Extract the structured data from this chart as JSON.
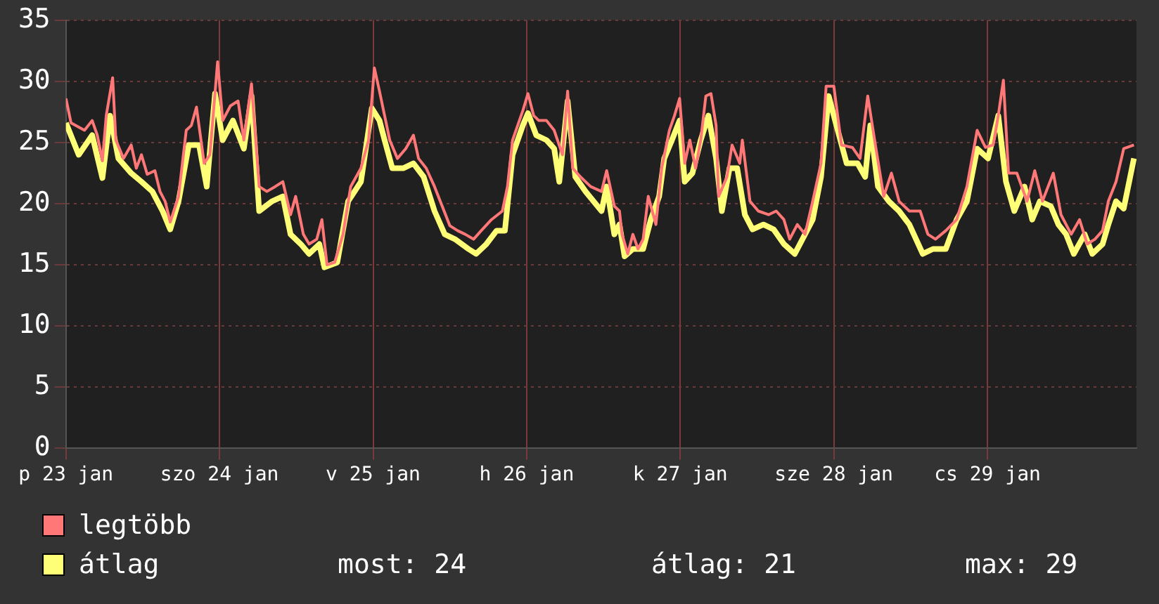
{
  "chart_data": {
    "type": "line",
    "xlim": [
      "--01-23T00:00",
      "--01-29T23:18"
    ],
    "xticks": [
      {
        "value": "--01-23",
        "label": "p 23 jan"
      },
      {
        "value": "--01-24",
        "label": "szo 24 jan"
      },
      {
        "value": "--01-25",
        "label": "v 25 jan"
      },
      {
        "value": "--01-26",
        "label": "h 26 jan"
      },
      {
        "value": "--01-27",
        "label": "k 27 jan"
      },
      {
        "value": "--01-28",
        "label": "sze 28 jan"
      },
      {
        "value": "--01-29",
        "label": "cs 29 jan"
      }
    ],
    "ylim": [
      0,
      35
    ],
    "yticks": [
      0,
      5,
      10,
      15,
      20,
      25,
      30,
      35
    ],
    "grid": true,
    "legend": "bottom",
    "line_style": "solid",
    "marker": "none",
    "annotations": [
      "most: 24",
      "átlag: 21",
      "max: 29"
    ],
    "series": [
      {
        "name": "legtöbb",
        "color": "#ff7777",
        "x": [
          "--01-23T00:00",
          "--01-23T00:48",
          "--01-23T02:54",
          "--01-23T04:06",
          "--01-23T04:54",
          "--01-23T05:42",
          "--01-23T06:18",
          "--01-23T07:18",
          "--01-23T07:48",
          "--01-23T09:00",
          "--01-23T10:12",
          "--01-23T11:00",
          "--01-23T11:48",
          "--01-23T12:42",
          "--01-23T13:54",
          "--01-23T14:42",
          "--01-23T15:30",
          "--01-23T16:18",
          "--01-23T17:36",
          "--01-23T18:48",
          "--01-23T19:36",
          "--01-23T20:24",
          "--01-23T21:36",
          "--01-23T22:30",
          "--01-23T23:42",
          "--01-24T00:30",
          "--01-24T01:42",
          "--01-24T02:54",
          "--01-24T03:48",
          "--01-24T05:00",
          "--01-24T06:12",
          "--01-24T07:24",
          "--01-24T08:42",
          "--01-24T09:54",
          "--01-24T11:06",
          "--01-24T11:54",
          "--01-24T13:06",
          "--01-24T14:00",
          "--01-24T15:12",
          "--01-24T16:00",
          "--01-24T16:48",
          "--01-24T18:00",
          "--01-24T19:18",
          "--01-24T20:30",
          "--01-24T22:06",
          "--01-24T23:18",
          "--01-25T00:12",
          "--01-25T01:00",
          "--01-25T01:48",
          "--01-25T02:36",
          "--01-25T03:48",
          "--01-25T05:06",
          "--01-25T06:18",
          "--01-25T07:06",
          "--01-25T08:18",
          "--01-25T09:36",
          "--01-25T10:48",
          "--01-25T12:00",
          "--01-25T13:12",
          "--01-25T14:24",
          "--01-25T15:42",
          "--01-25T16:54",
          "--01-25T18:30",
          "--01-25T20:12",
          "--01-25T21:00",
          "--01-25T21:48",
          "--01-25T23:24",
          "--01-26T00:12",
          "--01-26T01:06",
          "--01-26T01:54",
          "--01-26T03:06",
          "--01-26T04:18",
          "--01-26T05:36",
          "--01-26T06:24",
          "--01-26T07:12",
          "--01-26T08:24",
          "--01-26T10:00",
          "--01-26T11:42",
          "--01-26T12:30",
          "--01-26T13:42",
          "--01-26T14:30",
          "--01-26T14:54",
          "--01-26T15:48",
          "--01-26T16:36",
          "--01-26T17:24",
          "--01-26T18:12",
          "--01-26T19:00",
          "--01-26T20:12",
          "--01-26T21:06",
          "--01-26T22:18",
          "--01-26T23:06",
          "--01-26T23:54",
          "--01-27T00:42",
          "--01-27T01:30",
          "--01-27T02:24",
          "--01-27T03:12",
          "--01-27T04:00",
          "--01-27T04:48",
          "--01-27T05:36",
          "--01-27T06:00",
          "--01-27T07:18",
          "--01-27T08:06",
          "--01-27T09:18",
          "--01-27T09:42",
          "--01-27T10:54",
          "--01-27T12:12",
          "--01-27T13:48",
          "--01-27T15:00",
          "--01-27T16:12",
          "--01-27T17:06",
          "--01-27T18:18",
          "--01-27T19:30",
          "--01-27T20:42",
          "--01-27T22:00",
          "--01-27T22:48",
          "--01-28T00:00",
          "--01-28T01:12",
          "--01-28T02:54",
          "--01-28T04:06",
          "--01-28T05:18",
          "--01-28T06:30",
          "--01-28T07:48",
          "--01-28T09:00",
          "--01-28T10:12",
          "--01-28T11:48",
          "--01-28T13:30",
          "--01-28T14:42",
          "--01-28T15:54",
          "--01-28T17:30",
          "--01-28T19:12",
          "--01-28T20:48",
          "--01-28T22:24",
          "--01-28T23:42",
          "--01-29T00:54",
          "--01-29T01:42",
          "--01-29T02:30",
          "--01-29T03:18",
          "--01-29T04:36",
          "--01-29T06:12",
          "--01-29T07:24",
          "--01-29T08:36",
          "--01-29T10:18",
          "--01-29T11:30",
          "--01-29T13:06",
          "--01-29T14:24",
          "--01-29T15:36",
          "--01-29T16:48",
          "--01-29T18:00",
          "--01-29T18:54",
          "--01-29T20:06",
          "--01-29T21:18",
          "--01-29T22:54"
        ],
        "values": [
          28.6,
          26.6,
          26,
          26.8,
          25.6,
          23.5,
          27.2,
          30.3,
          25.2,
          23.7,
          24.8,
          22.9,
          24,
          22.4,
          22.7,
          21,
          20.2,
          18.5,
          20.6,
          26,
          26.4,
          27.9,
          23.3,
          24,
          31.6,
          26.8,
          28,
          28.4,
          25.2,
          29.8,
          21.4,
          21,
          21.4,
          21.8,
          19.1,
          20.6,
          17.5,
          16.7,
          17.1,
          18.7,
          15,
          15.2,
          17.5,
          21.4,
          22.9,
          25.2,
          31.1,
          29.2,
          27.2,
          25.2,
          23.7,
          24.5,
          25.6,
          23.7,
          22.9,
          21.4,
          19.8,
          18.2,
          17.8,
          17.5,
          17.1,
          17.8,
          18.7,
          19.4,
          21.4,
          25.2,
          27.6,
          29,
          27.2,
          26.8,
          26.8,
          26,
          24,
          29.2,
          22.9,
          22.2,
          21.4,
          21,
          22.7,
          19.8,
          19.4,
          17.5,
          15.9,
          17.5,
          16.3,
          17.1,
          20.6,
          18.3,
          22.9,
          26,
          27.2,
          28.6,
          23.3,
          25.2,
          22.9,
          25.2,
          28.8,
          29,
          26.4,
          20.6,
          22.2,
          24.8,
          23.3,
          25.2,
          20.2,
          19.4,
          19.1,
          19.4,
          18.7,
          17.1,
          18.3,
          17.5,
          20.2,
          23.3,
          29.6,
          29.6,
          24.8,
          24.6,
          23.7,
          28.8,
          24.8,
          20.6,
          22.5,
          20.2,
          19.4,
          19.4,
          17.5,
          17.1,
          17.8,
          18.7,
          21.4,
          26,
          24.6,
          24.8,
          27.2,
          30.1,
          22.5,
          22.5,
          20.2,
          22.7,
          20.2,
          22.5,
          19.1,
          17.5,
          18.7,
          16.7,
          17.1,
          17.8,
          20.2,
          21.8,
          24.5,
          24.8
        ]
      },
      {
        "name": "átlag",
        "color": "#ffff77",
        "x": [
          "--01-23T00:00",
          "--01-23T02:00",
          "--01-23T04:06",
          "--01-23T05:42",
          "--01-23T06:54",
          "--01-23T08:12",
          "--01-23T10:12",
          "--01-23T11:48",
          "--01-23T13:30",
          "--01-23T15:06",
          "--01-23T16:18",
          "--01-23T17:36",
          "--01-23T19:12",
          "--01-23T20:48",
          "--01-23T22:00",
          "--01-23T23:18",
          "--01-24T00:30",
          "--01-24T02:06",
          "--01-24T03:48",
          "--01-24T05:00",
          "--01-24T06:12",
          "--01-24T08:12",
          "--01-24T09:54",
          "--01-24T11:06",
          "--01-24T12:42",
          "--01-24T14:00",
          "--01-24T15:36",
          "--01-24T16:24",
          "--01-24T18:24",
          "--01-24T20:06",
          "--01-24T22:06",
          "--01-24T23:48",
          "--01-25T01:00",
          "--01-25T01:48",
          "--01-25T03:00",
          "--01-25T04:42",
          "--01-25T06:18",
          "--01-25T07:54",
          "--01-25T09:36",
          "--01-25T11:12",
          "--01-25T12:48",
          "--01-25T14:54",
          "--01-25T16:06",
          "--01-25T17:42",
          "--01-25T19:18",
          "--01-25T20:36",
          "--01-25T21:48",
          "--01-25T23:24",
          "--01-26T00:12",
          "--01-26T01:30",
          "--01-26T03:06",
          "--01-26T04:18",
          "--01-26T05:06",
          "--01-26T06:24",
          "--01-26T07:36",
          "--01-26T09:12",
          "--01-26T11:42",
          "--01-26T12:30",
          "--01-26T13:42",
          "--01-26T14:30",
          "--01-26T15:18",
          "--01-26T16:36",
          "--01-26T18:12",
          "--01-26T19:24",
          "--01-26T20:42",
          "--01-26T21:30",
          "--01-26T22:42",
          "--01-26T23:54",
          "--01-27T00:42",
          "--01-27T01:54",
          "--01-27T03:12",
          "--01-27T04:24",
          "--01-27T05:36",
          "--01-27T06:30",
          "--01-27T07:42",
          "--01-27T08:54",
          "--01-27T10:06",
          "--01-27T11:18",
          "--01-27T13:00",
          "--01-27T14:36",
          "--01-27T16:12",
          "--01-27T17:54",
          "--01-27T19:06",
          "--01-27T20:42",
          "--01-27T22:00",
          "--01-27T23:12",
          "--01-28T00:24",
          "--01-28T02:00",
          "--01-28T03:42",
          "--01-28T04:54",
          "--01-28T05:42",
          "--01-28T06:54",
          "--01-28T08:36",
          "--01-28T10:12",
          "--01-28T11:48",
          "--01-28T13:54",
          "--01-28T15:30",
          "--01-28T17:30",
          "--01-28T19:12",
          "--01-28T20:48",
          "--01-28T22:24",
          "--01-29T00:06",
          "--01-29T01:42",
          "--01-29T02:54",
          "--01-29T04:12",
          "--01-29T05:48",
          "--01-29T07:00",
          "--01-29T08:12",
          "--01-29T09:54",
          "--01-29T11:06",
          "--01-29T12:18",
          "--01-29T13:30",
          "--01-29T15:12",
          "--01-29T16:24",
          "--01-29T18:00",
          "--01-29T18:54",
          "--01-29T20:06",
          "--01-29T21:18",
          "--01-29T22:54"
        ],
        "values": [
          26.6,
          24,
          25.6,
          22.1,
          27.2,
          23.7,
          22.5,
          21.8,
          21,
          19.4,
          17.9,
          20.2,
          24.8,
          24.8,
          21.4,
          29,
          25.2,
          26.8,
          24.5,
          28.8,
          19.4,
          20.2,
          20.6,
          17.5,
          16.7,
          15.9,
          16.7,
          14.8,
          15.2,
          20.2,
          21.8,
          27.8,
          26.8,
          25.2,
          22.9,
          22.9,
          23.3,
          22.2,
          19.4,
          17.5,
          17.1,
          16.3,
          15.9,
          16.7,
          17.8,
          17.8,
          24,
          26.4,
          27.4,
          25.6,
          25.2,
          24.5,
          21.8,
          28.4,
          22.2,
          21,
          19.4,
          21.4,
          17.5,
          18.3,
          15.7,
          16.3,
          16.3,
          18.7,
          20.6,
          23.7,
          25.2,
          26.8,
          21.8,
          22.5,
          25.2,
          27.2,
          23.7,
          19.4,
          22.9,
          22.9,
          19.1,
          17.9,
          18.3,
          17.9,
          16.7,
          15.9,
          17.1,
          18.7,
          22.2,
          28.8,
          26.4,
          23.3,
          23.3,
          22.2,
          26.4,
          21.4,
          20.2,
          19.4,
          18.3,
          15.9,
          16.3,
          16.3,
          18.7,
          20.2,
          24.5,
          23.7,
          27.2,
          21.8,
          19.4,
          21.4,
          18.7,
          20.2,
          19.8,
          18.3,
          17.5,
          15.9,
          17.5,
          15.9,
          16.7,
          18.3,
          20.2,
          19.6,
          23.7
        ]
      }
    ]
  }
}
